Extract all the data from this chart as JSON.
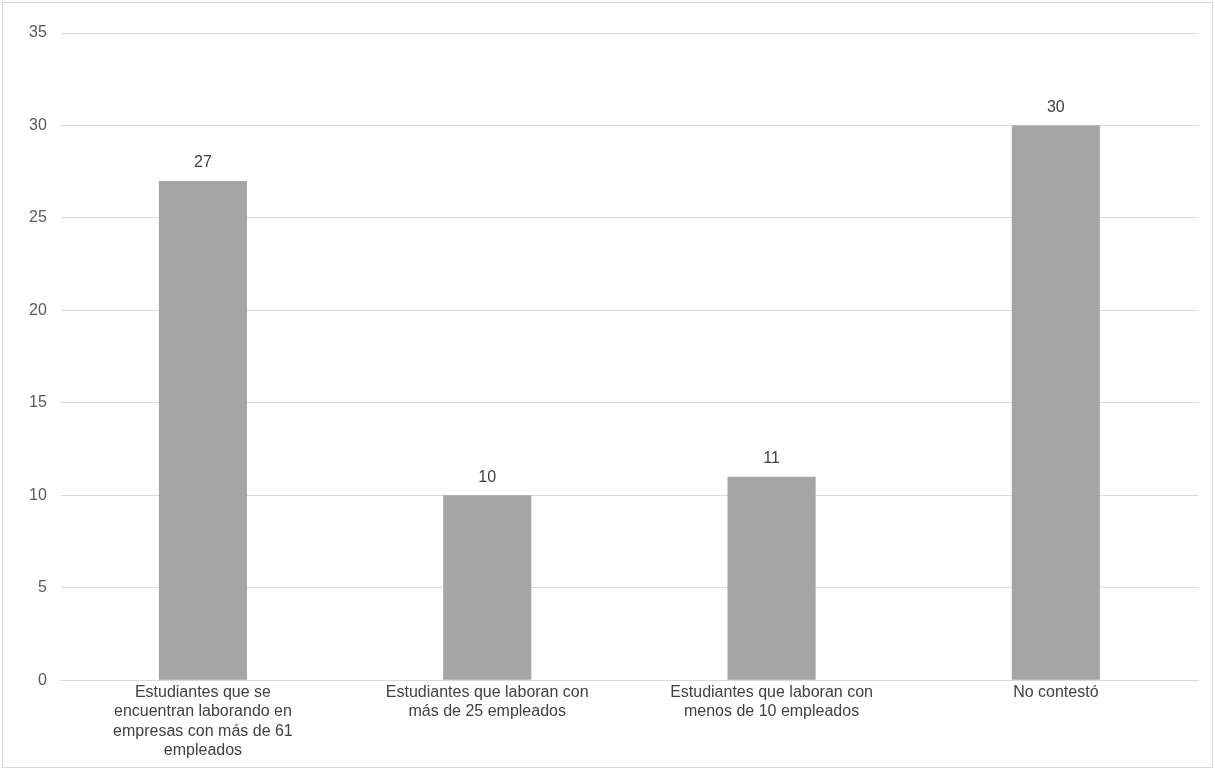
{
  "chart_data": {
    "type": "bar",
    "categories": [
      "Estudiantes que se encuentran laborando en empresas con más de 61 empleados",
      "Estudiantes que laboran con más de 25 empleados",
      "Estudiantes que laboran con menos de 10 empleados",
      "No contestó"
    ],
    "values": [
      27,
      10,
      11,
      30
    ],
    "color": "#a5a5a5",
    "ylim": [
      0,
      35
    ],
    "yticks": [
      0,
      5,
      10,
      15,
      20,
      25,
      30,
      35
    ],
    "grid": "y",
    "data_labels": true,
    "legend": false
  }
}
